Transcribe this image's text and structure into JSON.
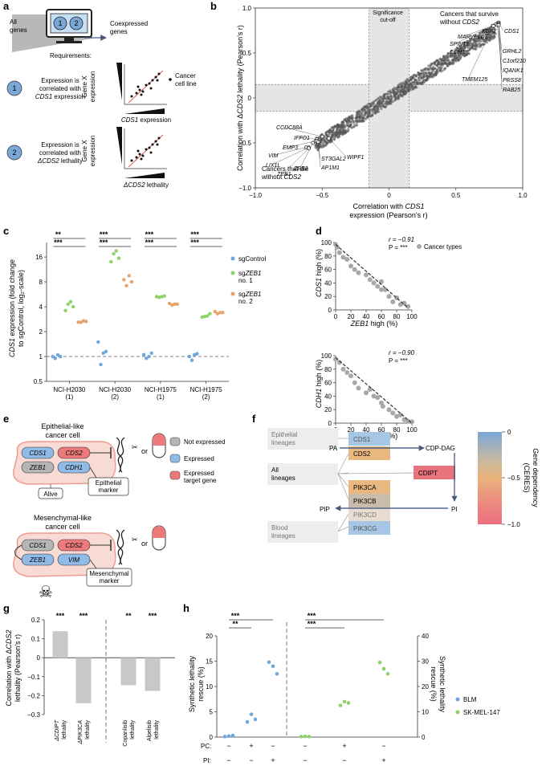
{
  "panel_a": {
    "label": "a",
    "all_genes": [
      "All",
      "genes"
    ],
    "coexpressed": [
      "Coexpressed",
      "genes"
    ],
    "requirements": "Requirements:",
    "req1_num": "1",
    "req1_lines": [
      "Expression is",
      "correlated with"
    ],
    "req1_gene": "CDS1",
    "req1_tail": " expression",
    "req2_num": "2",
    "req2_lines": [
      "Expression is",
      "correlated with"
    ],
    "req2_gene": "ΔCDS2",
    "req2_tail": " lethality",
    "gene_x": [
      "Gene X",
      "expression"
    ],
    "cancer_cell_line": [
      "Cancer",
      "cell line"
    ],
    "x1_gene": "CDS1",
    "x1_tail": " expression",
    "x2_gene": "ΔCDS2",
    "x2_tail": " lethality"
  },
  "panel_b": {
    "label": "b",
    "sig_cutoff": [
      "Significance",
      "cut-off"
    ],
    "survive": [
      "Cancers that survive",
      "without "
    ],
    "survive_gene": "CDS2",
    "die": [
      "Cancers that die",
      "without "
    ],
    "die_gene": "CDS2",
    "ylabel_pre": "Correlation with Δ",
    "ylabel_gene": "CDS2",
    "ylabel_post": " lethality (Pearson's r)",
    "xlabel1_pre": "Correlation with ",
    "xlabel1_gene": "CDS1",
    "xlabel2": "expression (Pearson's r)",
    "xticks": [
      "−1.0",
      "−0.5",
      "0",
      "0.5",
      "1.0"
    ],
    "yticks": [
      "1.0",
      "0.5",
      "0",
      "−0.5",
      "−1.0"
    ],
    "genes_high": [
      "CDS1",
      "KDF1",
      "MARVELD3",
      "SPINT1",
      "CDH1",
      "GRHL2",
      "C1orf210",
      "IQANK1",
      "PRSS8",
      "RAB25",
      "TMEM125"
    ],
    "genes_low": [
      "CCDC88A",
      "IFFO1",
      "EMP3",
      "VIM",
      "LIX1L",
      "ZEB1",
      "ZEB2",
      "ST3GAL2",
      "AP1M1",
      "WIPF1"
    ]
  },
  "panel_c": {
    "label": "c",
    "ylabel1_pre": "",
    "ylabel1_gene": "CDS1",
    "ylabel1_post": " expression (fold change",
    "ylabel2": "to sgControl, log₂-scale)",
    "yticks": [
      "16",
      "8",
      "4",
      "2",
      "1",
      "0.5"
    ],
    "groups": [
      [
        "NCI-H2030",
        "(1)"
      ],
      [
        "NCI-H2030",
        "(2)"
      ],
      [
        "NCI-H1975",
        "(1)"
      ],
      [
        "NCI-H1975",
        "(2)"
      ]
    ],
    "sig_top": [
      "**",
      "***",
      "***",
      "***"
    ],
    "sig_bottom": [
      "***",
      "***",
      "***",
      "***"
    ],
    "legend_control": "sgControl",
    "legend_zeb1_1_pre": "sg",
    "legend_zeb1_1_gene": "ZEB1",
    "legend_zeb1_1_post": "no. 1",
    "legend_zeb1_2_pre": "sg",
    "legend_zeb1_2_gene": "ZEB1",
    "legend_zeb1_2_post": "no. 2"
  },
  "panel_d": {
    "label": "d",
    "top": {
      "r": "r = −0.91",
      "p": "P = ***",
      "ylabel_gene": "CDS1",
      "ylabel_post": " high (%)"
    },
    "bottom": {
      "r": "r = −0.90",
      "p": "P = ***",
      "ylabel_gene": "CDH1",
      "ylabel_post": " high (%)"
    },
    "legend": "Cancer types",
    "xlabel_gene": "ZEB1",
    "xlabel_post": " high (%)",
    "ticks": [
      "0",
      "20",
      "40",
      "60",
      "80",
      "100"
    ]
  },
  "panel_e": {
    "label": "e",
    "epithelial_title": [
      "Epithelial-like",
      "cancer cell"
    ],
    "mesenchymal_title": [
      "Mesenchymal-like",
      "cancer cell"
    ],
    "genes_epi": [
      "CDS1",
      "CDS2",
      "ZEB1",
      "CDH1"
    ],
    "genes_mes": [
      "CDS1",
      "CDS2",
      "ZEB1",
      "VIM"
    ],
    "epi_marker": [
      "Epithelial",
      "marker"
    ],
    "mes_marker": [
      "Mesenchymal",
      "marker"
    ],
    "alive": "Alive",
    "or": "or",
    "legend": [
      "Not expressed",
      "Expressed",
      "Expressed"
    ],
    "legend_extra": "target gene"
  },
  "panel_f": {
    "label": "f",
    "lineages": [
      [
        "Epithelial",
        "lineages"
      ],
      [
        "All",
        "lineages"
      ],
      [
        "Blood",
        "lineages"
      ]
    ],
    "genes": [
      "CDS1",
      "CDS2",
      "CDIPT",
      "PIK3CA",
      "PIK3CB",
      "PIK3CD",
      "PIK3CG"
    ],
    "metabolites": [
      "PA",
      "CDP-DAG",
      "PI",
      "PIP"
    ],
    "colorbar_title": [
      "Gene dependency",
      "(CERES)"
    ],
    "colorbar_ticks": [
      "0",
      "−0.5",
      "−1.0"
    ]
  },
  "panel_g": {
    "label": "g",
    "ylabel1_pre": "Correlation with Δ",
    "ylabel1_gene": "CDS2",
    "ylabel2": "lethality (Pearson's r)",
    "yticks": [
      "0.2",
      "0.1",
      "0",
      "−0.1",
      "−0.2",
      "−0.3"
    ],
    "sig": [
      "***",
      "***",
      "**",
      "***"
    ],
    "bar_labels": [
      [
        "ΔCDIPT",
        "lethality"
      ],
      [
        "ΔPIK3CA",
        "lethality"
      ],
      [
        "Copanlisib",
        "lethality"
      ],
      [
        "Alpelisib",
        "lethality"
      ]
    ]
  },
  "panel_h": {
    "label": "h",
    "ylabel_left": [
      "Synthetic lethality",
      "rescue (%)"
    ],
    "ylabel_right": [
      "Synthetic lethality",
      "rescue (%)"
    ],
    "left_yticks": [
      "20",
      "15",
      "10",
      "5",
      "0"
    ],
    "right_yticks": [
      "40",
      "30",
      "20",
      "10",
      "0"
    ],
    "pc_label": "PC:",
    "pi_label": "PI:",
    "pc_row": [
      "−",
      "+",
      "−",
      "−",
      "+",
      "−"
    ],
    "pi_row": [
      "−",
      "−",
      "+",
      "−",
      "−",
      "+"
    ],
    "sig_top": [
      "***",
      "***"
    ],
    "sig_bottom": [
      "**",
      "***"
    ],
    "legend": [
      "BLM",
      "SK-MEL-147"
    ]
  },
  "chart_data": [
    {
      "type": "scatter",
      "panel": "b",
      "xlabel": "Correlation with CDS1 expression (Pearson's r)",
      "ylabel": "Correlation with ΔCDS2 lethality (Pearson's r)",
      "xlim": [
        -1,
        1
      ],
      "ylim": [
        -1,
        1
      ],
      "significance_cutoff": 0.15,
      "trend": {
        "description": "dense cloud along diagonal",
        "x_range": [
          -0.55,
          0.82
        ]
      },
      "labeled_points": [
        {
          "gene": "CDS1",
          "x": 0.82,
          "y": 0.83
        },
        {
          "gene": "KDF1",
          "x": 0.82,
          "y": 0.84
        },
        {
          "gene": "MARVELD3",
          "x": 0.81,
          "y": 0.82
        },
        {
          "gene": "SPINT1",
          "x": 0.81,
          "y": 0.83
        },
        {
          "gene": "CDH1",
          "x": 0.8,
          "y": 0.82
        },
        {
          "gene": "GRHL2",
          "x": 0.82,
          "y": 0.83
        },
        {
          "gene": "C1orf210",
          "x": 0.82,
          "y": 0.82
        },
        {
          "gene": "IQANK1",
          "x": 0.81,
          "y": 0.81
        },
        {
          "gene": "PRSS8",
          "x": 0.82,
          "y": 0.82
        },
        {
          "gene": "RAB25",
          "x": 0.82,
          "y": 0.81
        },
        {
          "gene": "TMEM125",
          "x": 0.78,
          "y": 0.8
        },
        {
          "gene": "CCDC88A",
          "x": -0.5,
          "y": -0.43
        },
        {
          "gene": "IFFO1",
          "x": -0.54,
          "y": -0.46
        },
        {
          "gene": "EMP3",
          "x": -0.55,
          "y": -0.48
        },
        {
          "gene": "VIM",
          "x": -0.62,
          "y": -0.55
        },
        {
          "gene": "LIX1L",
          "x": -0.6,
          "y": -0.55
        },
        {
          "gene": "ZEB1",
          "x": -0.6,
          "y": -0.56
        },
        {
          "gene": "ZEB2",
          "x": -0.57,
          "y": -0.5
        },
        {
          "gene": "ST3GAL2",
          "x": -0.54,
          "y": -0.48
        },
        {
          "gene": "AP1M1",
          "x": -0.53,
          "y": -0.49
        },
        {
          "gene": "WIPF1",
          "x": -0.45,
          "y": -0.45
        }
      ]
    },
    {
      "type": "scatter",
      "panel": "c",
      "ylabel": "CDS1 expression (fold change to sgControl, log2-scale)",
      "y_scale": "log2",
      "ylim": [
        0.5,
        24
      ],
      "categories": [
        "NCI-H2030 (1)",
        "NCI-H2030 (2)",
        "NCI-H1975 (1)",
        "NCI-H1975 (2)"
      ],
      "series": [
        {
          "name": "sgControl",
          "color": "#6fa8dc",
          "values": [
            [
              1.0,
              0.95,
              1.05,
              1.0
            ],
            [
              1.5,
              0.8,
              1.1,
              1.15
            ],
            [
              1.05,
              0.95,
              1.0,
              1.1
            ],
            [
              1.0,
              0.9,
              1.05,
              1.08
            ]
          ]
        },
        {
          "name": "sgZEB1 no. 1",
          "color": "#8fd16a",
          "values": [
            [
              3.6,
              4.3,
              4.6,
              4.0
            ],
            [
              14.0,
              17.5,
              19.0,
              15.5
            ],
            [
              5.3,
              5.2,
              5.3,
              5.4
            ],
            [
              3.0,
              3.05,
              3.1,
              3.3
            ]
          ]
        },
        {
          "name": "sgZEB1 no. 2",
          "color": "#e8a36a",
          "values": [
            [
              2.6,
              2.6,
              2.7,
              2.65
            ],
            [
              8.5,
              7.2,
              9.5,
              8.0
            ],
            [
              4.4,
              4.2,
              4.3,
              4.3
            ],
            [
              3.5,
              3.3,
              3.4,
              3.4
            ]
          ]
        }
      ]
    },
    {
      "type": "scatter",
      "panel": "d-top",
      "xlabel": "ZEB1 high (%)",
      "ylabel": "CDS1 high (%)",
      "xlim": [
        0,
        100
      ],
      "ylim": [
        0,
        100
      ],
      "pearson_r": -0.91,
      "points": [
        [
          0,
          97
        ],
        [
          2,
          93
        ],
        [
          5,
          85
        ],
        [
          10,
          78
        ],
        [
          15,
          75
        ],
        [
          20,
          65
        ],
        [
          25,
          60
        ],
        [
          30,
          55
        ],
        [
          40,
          52
        ],
        [
          45,
          45
        ],
        [
          50,
          40
        ],
        [
          55,
          35
        ],
        [
          60,
          30
        ],
        [
          60,
          42
        ],
        [
          65,
          30
        ],
        [
          70,
          20
        ],
        [
          75,
          12
        ],
        [
          80,
          18
        ],
        [
          85,
          8
        ],
        [
          90,
          10
        ],
        [
          95,
          5
        ]
      ],
      "trend_line": [
        [
          0,
          97
        ],
        [
          95,
          3
        ]
      ]
    },
    {
      "type": "scatter",
      "panel": "d-bottom",
      "xlabel": "ZEB1 high (%)",
      "ylabel": "CDH1 high (%)",
      "xlim": [
        0,
        100
      ],
      "ylim": [
        0,
        100
      ],
      "pearson_r": -0.9,
      "points": [
        [
          0,
          95
        ],
        [
          5,
          90
        ],
        [
          10,
          80
        ],
        [
          15,
          75
        ],
        [
          20,
          70
        ],
        [
          25,
          60
        ],
        [
          30,
          52
        ],
        [
          40,
          45
        ],
        [
          45,
          50
        ],
        [
          50,
          40
        ],
        [
          55,
          38
        ],
        [
          60,
          30
        ],
        [
          62,
          25
        ],
        [
          70,
          20
        ],
        [
          75,
          15
        ],
        [
          80,
          10
        ],
        [
          85,
          12
        ],
        [
          90,
          5
        ],
        [
          95,
          3
        ],
        [
          100,
          2
        ]
      ],
      "trend_line": [
        [
          0,
          97
        ],
        [
          100,
          0
        ]
      ]
    },
    {
      "type": "bar",
      "panel": "g",
      "categories": [
        "ΔCDIPT lethality",
        "ΔPIK3CA lethality",
        "Copanlisib lethality",
        "Alpelisib lethality"
      ],
      "values": [
        0.14,
        -0.24,
        -0.145,
        -0.175
      ],
      "significance": [
        "***",
        "***",
        "**",
        "***"
      ],
      "ylim": [
        -0.3,
        0.2
      ],
      "ylabel": "Correlation with ΔCDS2 lethality (Pearson's r)"
    },
    {
      "type": "scatter",
      "panel": "h",
      "series": [
        {
          "name": "BLM",
          "color": "#6fa8dc",
          "axis": "left",
          "ylim": [
            0,
            20
          ],
          "groups": [
            {
              "PC": "−",
              "PI": "−",
              "values": [
                0.1,
                0.2,
                0.3
              ]
            },
            {
              "PC": "+",
              "PI": "−",
              "values": [
                3.0,
                4.5,
                3.5
              ]
            },
            {
              "PC": "−",
              "PI": "+",
              "values": [
                14.8,
                14.0,
                12.5
              ]
            }
          ]
        },
        {
          "name": "SK-MEL-147",
          "color": "#8fd16a",
          "axis": "right",
          "ylim": [
            0,
            40
          ],
          "groups": [
            {
              "PC": "−",
              "PI": "−",
              "values": [
                0.2,
                0.3,
                0.2
              ]
            },
            {
              "PC": "+",
              "PI": "−",
              "values": [
                12.5,
                14.0,
                13.5
              ]
            },
            {
              "PC": "−",
              "PI": "+",
              "values": [
                29.5,
                27.0,
                25.0
              ]
            }
          ]
        }
      ]
    }
  ]
}
